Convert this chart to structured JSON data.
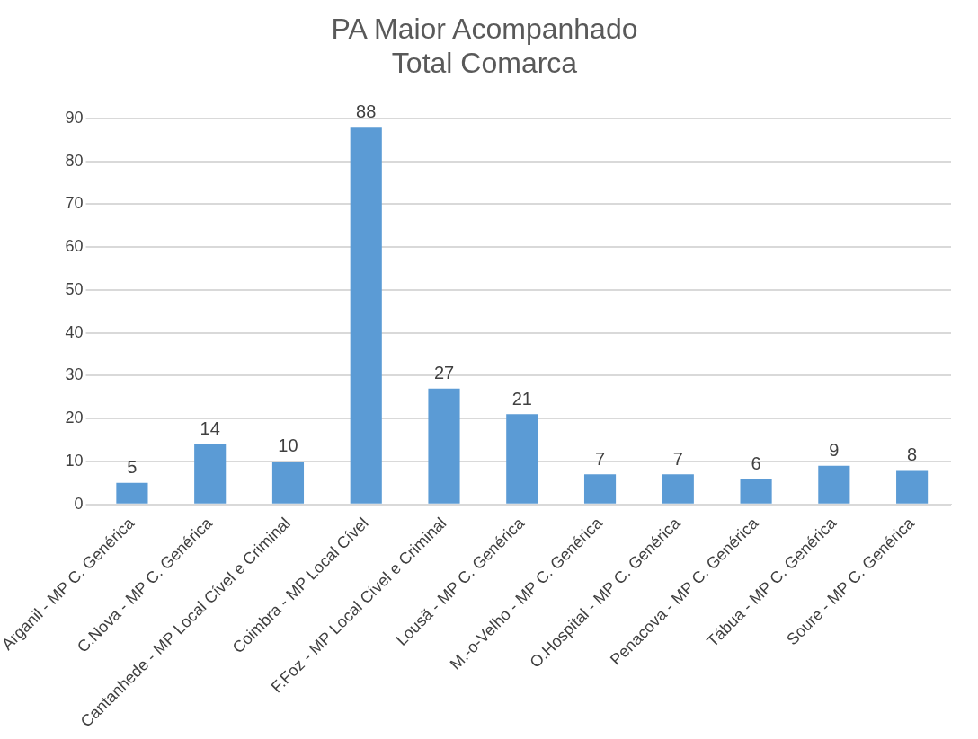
{
  "chart_data": {
    "type": "bar",
    "title": "PA Maior Acompanhado\nTotal Comarca",
    "categories": [
      "Arganil - MP C. Genérica",
      "C.Nova - MP C. Genérica",
      "Cantanhede - MP Local Cível e Criminal",
      "Coimbra - MP Local Cível",
      "F.Foz - MP Local Cível e Criminal",
      "Lousã - MP C. Genérica",
      "M.-o-Velho - MP C. Genérica",
      "O.Hospital - MP C. Genérica",
      "Penacova - MP C. Genérica",
      "Tábua - MP C. Genérica",
      "Soure - MP C. Genérica"
    ],
    "values": [
      5,
      14,
      10,
      88,
      27,
      21,
      7,
      7,
      6,
      9,
      8
    ],
    "color": "#5b9bd5",
    "ylim": [
      0,
      90
    ],
    "yticks": [
      0,
      10,
      20,
      30,
      40,
      50,
      60,
      70,
      80,
      90
    ],
    "grid": "y",
    "data_labels": true,
    "legend": false
  }
}
